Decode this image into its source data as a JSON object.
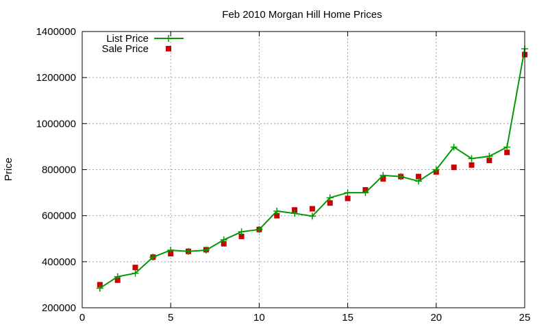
{
  "chart_data": {
    "type": "line",
    "title": "Feb 2010 Morgan Hill Home Prices",
    "xlabel": "",
    "ylabel": "Price",
    "xlim": [
      0,
      25
    ],
    "ylim": [
      200000,
      1400000
    ],
    "x_ticks": [
      0,
      5,
      10,
      15,
      20,
      25
    ],
    "y_ticks": [
      200000,
      400000,
      600000,
      800000,
      1000000,
      1200000,
      1400000
    ],
    "grid": true,
    "legend_position": "top-left",
    "series": [
      {
        "name": "List Price",
        "style": "lines+points",
        "color": "#009900",
        "marker": "plus",
        "x": [
          1,
          2,
          3,
          4,
          5,
          6,
          7,
          8,
          9,
          10,
          11,
          12,
          13,
          14,
          15,
          16,
          17,
          18,
          19,
          20,
          21,
          22,
          23,
          24,
          25
        ],
        "y": [
          285000,
          335000,
          350000,
          420000,
          450000,
          445000,
          450000,
          495000,
          530000,
          540000,
          620000,
          610000,
          598000,
          678000,
          700000,
          700000,
          775000,
          770000,
          750000,
          800000,
          898000,
          848000,
          858000,
          898000,
          1325000
        ]
      },
      {
        "name": "Sale Price",
        "style": "points",
        "color": "#cc0000",
        "marker": "square",
        "x": [
          1,
          2,
          3,
          4,
          5,
          6,
          7,
          8,
          9,
          10,
          11,
          12,
          13,
          14,
          15,
          16,
          17,
          18,
          19,
          20,
          21,
          22,
          23,
          24,
          25
        ],
        "y": [
          300000,
          320000,
          375000,
          420000,
          435000,
          445000,
          452000,
          478000,
          510000,
          540000,
          600000,
          625000,
          630000,
          655000,
          675000,
          712000,
          760000,
          770000,
          770000,
          790000,
          810000,
          820000,
          840000,
          875000,
          1300000
        ]
      }
    ]
  }
}
